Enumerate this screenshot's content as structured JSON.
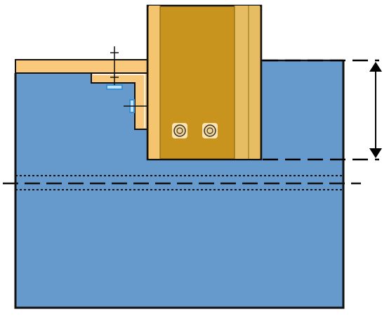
{
  "colors": {
    "slab": "#6699cc",
    "timber_light": "#f9c87a",
    "timber_mid": "#e6bd62",
    "timber_dark": "#c8941e",
    "outline": "#111111",
    "bolt_ring": "#fce3b0",
    "clip_blue": "#3a8fd0",
    "dim_line": "#000000"
  },
  "icons": {
    "bolt": "bolt-icon",
    "dimension_arrow": "double-arrow-icon",
    "anchor_marker": "crosshair-icon"
  },
  "labels": []
}
